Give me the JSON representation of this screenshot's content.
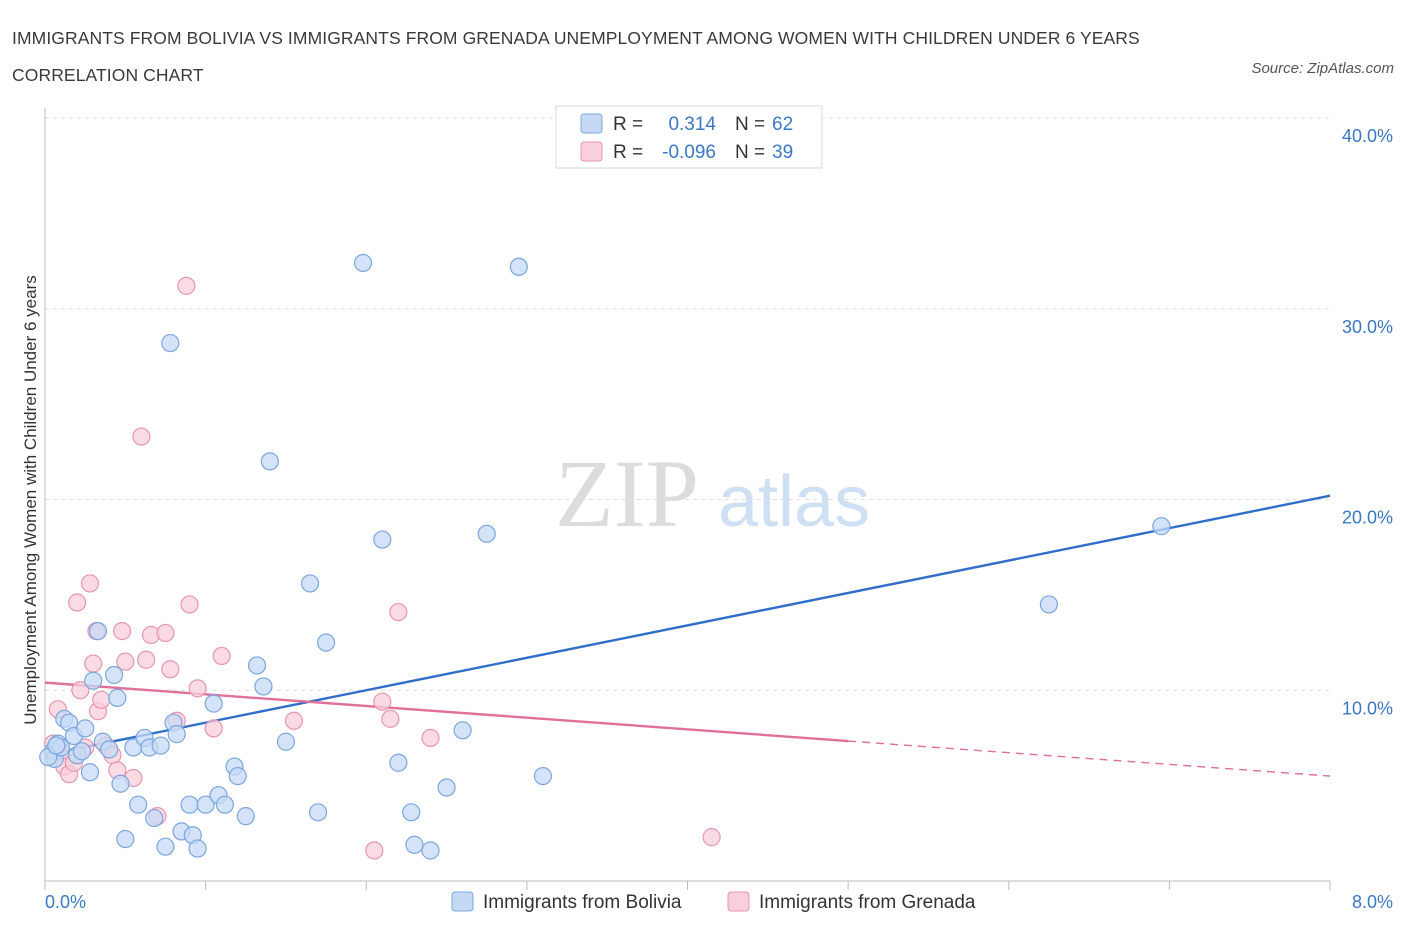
{
  "title": "IMMIGRANTS FROM BOLIVIA VS IMMIGRANTS FROM GRENADA UNEMPLOYMENT AMONG WOMEN WITH CHILDREN UNDER 6 YEARS CORRELATION CHART",
  "source": "Source: ZipAtlas.com",
  "watermark": {
    "zip": "ZIP",
    "atlas": "atlas"
  },
  "legend": {
    "r_label": "R =",
    "n_label": "N =",
    "rows": [
      {
        "r": "0.314",
        "n": "62"
      },
      {
        "r": "-0.096",
        "n": "39"
      }
    ]
  },
  "colors": {
    "bolivia_fill": "#c5d9f5",
    "bolivia_stroke": "#7aa7df",
    "bolivia_line": "#2f6fca",
    "grenada_fill": "#f8cfdb",
    "grenada_stroke": "#e895b0",
    "grenada_line": "#e0709a",
    "tick": "#3a78c4"
  },
  "chart_data": {
    "type": "scatter",
    "ylabel": "Unemployment Among Women with Children Under 6 years",
    "xlim": [
      0,
      8
    ],
    "ylim": [
      0,
      40
    ],
    "x_tick_labels": [
      "0.0%",
      "8.0%"
    ],
    "y_ticks": [
      10,
      20,
      30,
      40
    ],
    "y_tick_labels": [
      "10.0%",
      "20.0%",
      "30.0%",
      "40.0%"
    ],
    "grid": true,
    "series": [
      {
        "name": "Immigrants from Bolivia",
        "trend": {
          "x0": 0.0,
          "y0": 6.6,
          "x1": 8.0,
          "y1": 20.2,
          "solid_to": 8.0
        },
        "points": [
          [
            0.05,
            6.8
          ],
          [
            0.06,
            6.4
          ],
          [
            0.08,
            7.2
          ],
          [
            0.1,
            7.0
          ],
          [
            0.12,
            8.5
          ],
          [
            0.15,
            8.3
          ],
          [
            0.18,
            7.6
          ],
          [
            0.2,
            6.6
          ],
          [
            0.23,
            6.8
          ],
          [
            0.25,
            8.0
          ],
          [
            0.28,
            5.7
          ],
          [
            0.3,
            10.5
          ],
          [
            0.33,
            13.1
          ],
          [
            0.36,
            7.3
          ],
          [
            0.4,
            6.9
          ],
          [
            0.43,
            10.8
          ],
          [
            0.45,
            9.6
          ],
          [
            0.47,
            5.1
          ],
          [
            0.5,
            2.2
          ],
          [
            0.55,
            7.0
          ],
          [
            0.58,
            4.0
          ],
          [
            0.62,
            7.5
          ],
          [
            0.65,
            7.0
          ],
          [
            0.68,
            3.3
          ],
          [
            0.72,
            7.1
          ],
          [
            0.75,
            1.8
          ],
          [
            0.78,
            28.2
          ],
          [
            0.8,
            8.3
          ],
          [
            0.82,
            7.7
          ],
          [
            0.85,
            2.6
          ],
          [
            0.9,
            4.0
          ],
          [
            0.92,
            2.4
          ],
          [
            0.95,
            1.7
          ],
          [
            1.0,
            4.0
          ],
          [
            1.05,
            9.3
          ],
          [
            1.08,
            4.5
          ],
          [
            1.12,
            4.0
          ],
          [
            1.18,
            6.0
          ],
          [
            1.2,
            5.5
          ],
          [
            1.25,
            3.4
          ],
          [
            1.32,
            11.3
          ],
          [
            1.36,
            10.2
          ],
          [
            1.4,
            22.0
          ],
          [
            1.5,
            7.3
          ],
          [
            1.65,
            15.6
          ],
          [
            1.7,
            3.6
          ],
          [
            1.75,
            12.5
          ],
          [
            1.98,
            32.4
          ],
          [
            2.1,
            17.9
          ],
          [
            2.2,
            6.2
          ],
          [
            2.28,
            3.6
          ],
          [
            2.3,
            1.9
          ],
          [
            2.4,
            1.6
          ],
          [
            2.5,
            4.9
          ],
          [
            2.6,
            7.9
          ],
          [
            2.75,
            18.2
          ],
          [
            2.95,
            32.2
          ],
          [
            3.1,
            5.5
          ],
          [
            6.25,
            14.5
          ],
          [
            6.95,
            18.6
          ],
          [
            0.02,
            6.5
          ],
          [
            0.07,
            7.1
          ]
        ]
      },
      {
        "name": "Immigrants from Grenada",
        "trend": {
          "x0": 0.0,
          "y0": 10.4,
          "x1": 8.0,
          "y1": 5.5,
          "solid_to": 5.0
        },
        "points": [
          [
            0.05,
            7.2
          ],
          [
            0.08,
            9.0
          ],
          [
            0.1,
            6.8
          ],
          [
            0.12,
            6.0
          ],
          [
            0.15,
            5.6
          ],
          [
            0.18,
            6.2
          ],
          [
            0.2,
            14.6
          ],
          [
            0.22,
            10.0
          ],
          [
            0.25,
            7.0
          ],
          [
            0.28,
            15.6
          ],
          [
            0.3,
            11.4
          ],
          [
            0.33,
            8.9
          ],
          [
            0.35,
            9.5
          ],
          [
            0.38,
            7.1
          ],
          [
            0.42,
            6.6
          ],
          [
            0.45,
            5.8
          ],
          [
            0.48,
            13.1
          ],
          [
            0.5,
            11.5
          ],
          [
            0.55,
            5.4
          ],
          [
            0.6,
            23.3
          ],
          [
            0.63,
            11.6
          ],
          [
            0.66,
            12.9
          ],
          [
            0.7,
            3.4
          ],
          [
            0.75,
            13.0
          ],
          [
            0.78,
            11.1
          ],
          [
            0.82,
            8.4
          ],
          [
            0.88,
            31.2
          ],
          [
            0.9,
            14.5
          ],
          [
            0.95,
            10.1
          ],
          [
            1.05,
            8.0
          ],
          [
            1.1,
            11.8
          ],
          [
            1.55,
            8.4
          ],
          [
            2.05,
            1.6
          ],
          [
            2.1,
            9.4
          ],
          [
            2.15,
            8.5
          ],
          [
            2.2,
            14.1
          ],
          [
            2.4,
            7.5
          ],
          [
            4.15,
            2.3
          ],
          [
            0.32,
            13.1
          ]
        ]
      }
    ]
  }
}
